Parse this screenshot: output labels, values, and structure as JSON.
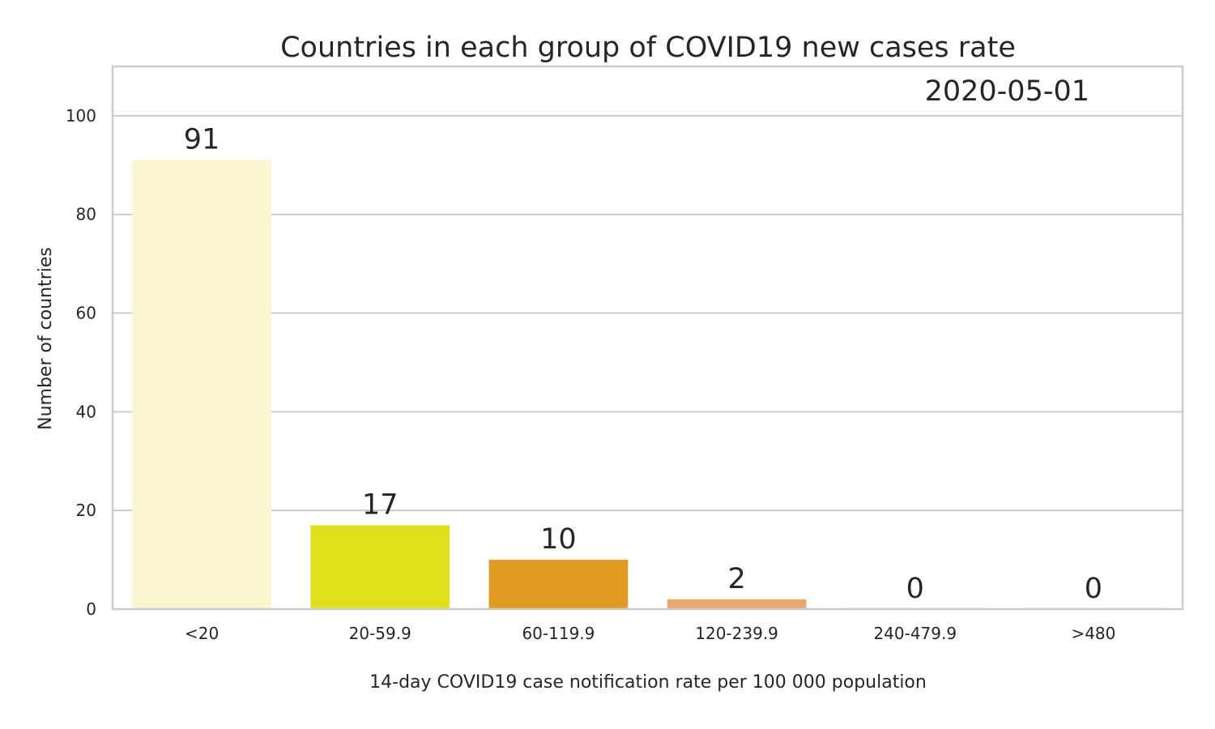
{
  "chart_data": {
    "type": "bar",
    "title": "Countries in each group of COVID19 new cases rate",
    "annotation": "2020-05-01",
    "xlabel": "14-day COVID19 case notification rate per 100 000 population",
    "ylabel": "Number of countries",
    "categories": [
      "<20",
      "20-59.9",
      "60-119.9",
      "120-239.9",
      "240-479.9",
      ">480"
    ],
    "values": [
      91,
      17,
      10,
      2,
      0,
      0
    ],
    "bar_labels": [
      "91",
      "17",
      "10",
      "2",
      "0",
      "0"
    ],
    "colors": [
      "#fbf6cf",
      "#e1e01d",
      "#e09c22",
      "#eaa86f",
      "#d9d9d9",
      "#d9d9d9"
    ],
    "ylim": [
      0,
      110
    ],
    "yticks": [
      0,
      20,
      40,
      60,
      80,
      100
    ],
    "grid": true
  }
}
